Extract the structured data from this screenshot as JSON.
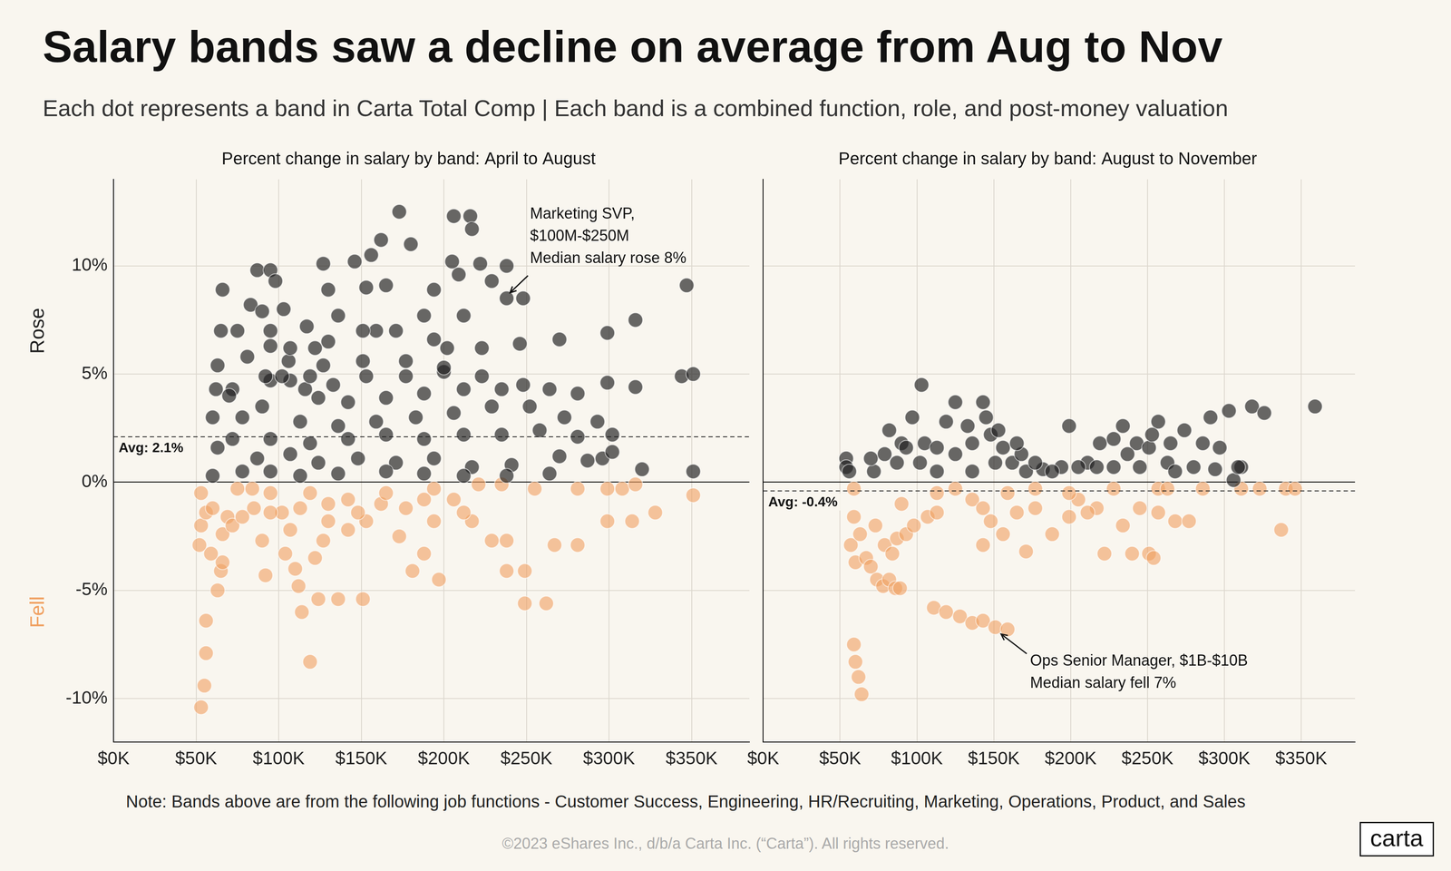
{
  "title": "Salary bands saw a decline on average from Aug to Nov",
  "subtitle": "Each dot represents a band in Carta Total Comp | Each band is a combined function, role, and post-money valuation",
  "note": "Note:  Bands above are from the following job functions - Customer Success, Engineering, HR/Recruiting, Marketing, Operations, Product, and Sales",
  "copyright": "©2023 eShares Inc., d/b/a Carta Inc. (“Carta”). All rights reserved.",
  "logo": "carta",
  "chart_data": [
    {
      "type": "scatter",
      "title": "Percent change in salary by band: April to August",
      "xlim": [
        0,
        385000
      ],
      "xticks": [
        {
          "value": 0,
          "label": "$0K"
        },
        {
          "value": 50000,
          "label": "$50K"
        },
        {
          "value": 100000,
          "label": "$100K"
        },
        {
          "value": 150000,
          "label": "$150K"
        },
        {
          "value": 200000,
          "label": "$200K"
        },
        {
          "value": 250000,
          "label": "$250K"
        },
        {
          "value": 300000,
          "label": "$300K"
        },
        {
          "value": 350000,
          "label": "$350K"
        }
      ],
      "ylim": [
        -12,
        14
      ],
      "yticks": [
        {
          "value": -10,
          "label": "-10%"
        },
        {
          "value": -5,
          "label": "-5%"
        },
        {
          "value": 0,
          "label": "0%"
        },
        {
          "value": 5,
          "label": "5%"
        },
        {
          "value": 10,
          "label": "10%"
        }
      ],
      "grid": true,
      "average": {
        "value": 2.1,
        "label": "Avg: 2.1%"
      },
      "annotations": [
        {
          "text": [
            "Marketing SVP,",
            "$100M-$250M",
            "Median salary rose 8%"
          ],
          "x": 238000,
          "y": 8.6
        }
      ],
      "series": [
        {
          "name": "Rose",
          "color": "#222222",
          "x": [
            173000,
            206000,
            216000,
            217000,
            180000,
            162000,
            156000,
            146000,
            127000,
            205000,
            222000,
            229000,
            238000,
            87000,
            95000,
            98000,
            66000,
            83000,
            90000,
            103000,
            130000,
            153000,
            165000,
            194000,
            209000,
            238000,
            248000,
            347000,
            65000,
            75000,
            95000,
            117000,
            136000,
            159000,
            171000,
            188000,
            299000,
            316000,
            202000,
            223000,
            246000,
            270000,
            177000,
            151000,
            127000,
            106000,
            81000,
            63000,
            344000,
            351000,
            299000,
            316000,
            95000,
            107000,
            72000,
            124000,
            142000,
            165000,
            188000,
            212000,
            235000,
            248000,
            264000,
            281000,
            90000,
            78000,
            60000,
            113000,
            136000,
            159000,
            183000,
            206000,
            229000,
            252000,
            273000,
            293000,
            302000,
            281000,
            258000,
            235000,
            212000,
            188000,
            165000,
            142000,
            119000,
            95000,
            72000,
            63000,
            87000,
            107000,
            124000,
            148000,
            171000,
            194000,
            217000,
            241000,
            270000,
            296000,
            320000,
            351000,
            60000,
            78000,
            95000,
            113000,
            136000,
            165000,
            188000,
            212000,
            238000,
            264000,
            287000,
            302000,
            62000,
            70000,
            92000,
            102000,
            116000,
            133000,
            153000,
            177000,
            200000,
            223000,
            130000,
            151000,
            95000,
            107000,
            122000,
            194000,
            212000,
            200000,
            119000
          ],
          "values": [
            12.5,
            12.3,
            12.3,
            11.7,
            11.0,
            11.2,
            10.5,
            10.2,
            10.1,
            10.2,
            10.1,
            9.3,
            10.0,
            9.8,
            9.8,
            9.3,
            8.9,
            8.2,
            7.9,
            8.0,
            8.9,
            9.0,
            9.1,
            8.9,
            9.6,
            8.5,
            8.5,
            9.1,
            7.0,
            7.0,
            7.0,
            7.2,
            7.7,
            7.0,
            7.0,
            7.7,
            6.9,
            7.5,
            6.2,
            6.2,
            6.4,
            6.6,
            5.6,
            5.6,
            5.4,
            5.6,
            5.8,
            5.4,
            4.9,
            5.0,
            4.6,
            4.4,
            4.7,
            4.7,
            4.3,
            3.9,
            3.7,
            3.9,
            4.1,
            4.3,
            4.3,
            4.5,
            4.3,
            4.1,
            3.5,
            3.0,
            3.0,
            2.8,
            2.6,
            2.8,
            3.0,
            3.2,
            3.5,
            3.5,
            3.0,
            2.8,
            2.2,
            2.1,
            2.4,
            2.2,
            2.2,
            2.0,
            2.2,
            2.0,
            1.8,
            2.0,
            2.0,
            1.6,
            1.1,
            1.3,
            0.9,
            1.1,
            0.9,
            1.1,
            0.7,
            0.8,
            1.2,
            1.1,
            0.6,
            0.5,
            0.3,
            0.5,
            0.5,
            0.3,
            0.4,
            0.5,
            0.4,
            0.3,
            0.3,
            0.4,
            1.0,
            1.4,
            4.3,
            4.0,
            4.9,
            4.9,
            4.3,
            4.5,
            4.9,
            4.9,
            5.1,
            4.9,
            6.5,
            7.0,
            6.3,
            6.2,
            6.2,
            6.6,
            7.7,
            5.3,
            4.9
          ]
        },
        {
          "name": "Fell",
          "color": "#f0a060",
          "x": [
            53000,
            55000,
            56000,
            56000,
            63000,
            65000,
            66000,
            59000,
            52000,
            53000,
            56000,
            53000,
            60000,
            69000,
            75000,
            84000,
            85000,
            90000,
            92000,
            102000,
            107000,
            104000,
            110000,
            112000,
            114000,
            119000,
            122000,
            124000,
            127000,
            130000,
            136000,
            142000,
            151000,
            153000,
            162000,
            173000,
            181000,
            188000,
            194000,
            197000,
            206000,
            217000,
            229000,
            238000,
            249000,
            249000,
            262000,
            238000,
            267000,
            281000,
            255000,
            281000,
            299000,
            308000,
            314000,
            328000,
            351000,
            299000,
            316000,
            235000,
            221000,
            95000,
            119000,
            142000,
            165000,
            188000,
            66000,
            72000,
            78000,
            95000,
            113000,
            130000,
            148000,
            177000,
            212000,
            194000
          ],
          "values": [
            -10.4,
            -9.4,
            -7.9,
            -6.4,
            -5.0,
            -4.1,
            -3.7,
            -3.3,
            -2.9,
            -2.0,
            -1.4,
            -0.5,
            -1.2,
            -1.6,
            -0.3,
            -0.3,
            -1.2,
            -2.7,
            -4.3,
            -1.4,
            -2.2,
            -3.3,
            -4.0,
            -4.8,
            -6.0,
            -8.3,
            -3.5,
            -5.4,
            -2.7,
            -1.8,
            -5.4,
            -2.2,
            -5.4,
            -1.8,
            -1.0,
            -2.5,
            -4.1,
            -3.3,
            -0.3,
            -4.5,
            -0.8,
            -1.8,
            -2.7,
            -4.1,
            -4.1,
            -5.6,
            -5.6,
            -2.7,
            -2.9,
            -2.9,
            -0.3,
            -0.3,
            -1.8,
            -0.3,
            -1.8,
            -1.4,
            -0.6,
            -0.3,
            -0.1,
            -0.1,
            -0.1,
            -0.5,
            -0.5,
            -0.8,
            -0.5,
            -0.8,
            -2.4,
            -2.0,
            -1.6,
            -1.4,
            -1.2,
            -1.0,
            -1.4,
            -1.2,
            -1.4,
            -1.8
          ]
        }
      ]
    },
    {
      "type": "scatter",
      "title": "Percent change in salary by band: August to November",
      "xlim": [
        0,
        385000
      ],
      "xticks": [
        {
          "value": 0,
          "label": "$0K"
        },
        {
          "value": 50000,
          "label": "$50K"
        },
        {
          "value": 100000,
          "label": "$100K"
        },
        {
          "value": 150000,
          "label": "$150K"
        },
        {
          "value": 200000,
          "label": "$200K"
        },
        {
          "value": 250000,
          "label": "$250K"
        },
        {
          "value": 300000,
          "label": "$300K"
        },
        {
          "value": 350000,
          "label": "$350K"
        }
      ],
      "ylim": [
        -12,
        14
      ],
      "yticks": [
        -10,
        -5,
        0,
        5,
        10
      ],
      "grid": true,
      "tick_labels": "x",
      "average": {
        "value": -0.4,
        "label": "Avg: -0.4%"
      },
      "annotations": [
        {
          "text": [
            "Ops Senior Manager, $1B-$10B",
            "Median salary fell 7%"
          ],
          "x": 152000,
          "y": -6.9
        }
      ],
      "series": [
        {
          "color": "#222222",
          "x": [
            54000,
            54000,
            56000,
            72000,
            82000,
            90000,
            97000,
            103000,
            105000,
            113000,
            119000,
            125000,
            136000,
            143000,
            145000,
            148000,
            156000,
            162000,
            171000,
            125000,
            133000,
            102000,
            113000,
            136000,
            182000,
            194000,
            199000,
            211000,
            219000,
            228000,
            234000,
            243000,
            251000,
            257000,
            263000,
            274000,
            286000,
            291000,
            297000,
            303000,
            311000,
            306000,
            318000,
            326000,
            359000,
            280000,
            245000,
            228000,
            217000,
            205000,
            268000,
            294000,
            70000,
            79000,
            87000,
            93000,
            151000,
            168000,
            177000,
            188000,
            237000,
            253000,
            265000,
            309000,
            165000,
            153000
          ],
          "values": [
            1.1,
            0.7,
            0.5,
            0.5,
            2.4,
            1.8,
            3.0,
            4.5,
            1.8,
            1.6,
            2.8,
            1.3,
            1.8,
            3.7,
            3.0,
            2.2,
            1.6,
            0.9,
            0.5,
            3.7,
            2.6,
            0.9,
            0.5,
            0.5,
            0.6,
            0.7,
            2.6,
            0.9,
            1.8,
            2.0,
            2.6,
            1.8,
            1.6,
            2.8,
            0.9,
            2.4,
            1.8,
            3.0,
            1.6,
            3.3,
            0.7,
            0.1,
            3.5,
            3.2,
            3.5,
            0.7,
            0.7,
            0.7,
            0.7,
            0.7,
            0.5,
            0.6,
            1.1,
            1.3,
            0.9,
            1.6,
            0.9,
            1.3,
            0.9,
            0.5,
            1.3,
            2.2,
            1.8,
            0.7,
            1.8,
            2.4
          ]
        },
        {
          "color": "#f0a060",
          "x": [
            59000,
            59000,
            57000,
            60000,
            59000,
            60000,
            62000,
            64000,
            63000,
            67000,
            70000,
            74000,
            78000,
            82000,
            86000,
            89000,
            73000,
            79000,
            84000,
            87000,
            93000,
            98000,
            107000,
            113000,
            111000,
            119000,
            128000,
            136000,
            143000,
            151000,
            159000,
            125000,
            136000,
            143000,
            148000,
            156000,
            165000,
            171000,
            177000,
            188000,
            199000,
            205000,
            217000,
            222000,
            234000,
            240000,
            251000,
            254000,
            257000,
            268000,
            277000,
            177000,
            228000,
            257000,
            286000,
            311000,
            323000,
            340000,
            346000,
            337000,
            263000,
            199000,
            159000,
            113000,
            90000,
            143000,
            211000,
            245000
          ],
          "values": [
            -0.3,
            -1.6,
            -2.9,
            -3.7,
            -7.5,
            -8.3,
            -9.0,
            -9.8,
            -2.4,
            -3.5,
            -3.9,
            -4.5,
            -4.8,
            -4.5,
            -4.9,
            -4.9,
            -2.0,
            -2.9,
            -3.3,
            -2.6,
            -2.4,
            -2.0,
            -1.6,
            -1.4,
            -5.8,
            -6.0,
            -6.2,
            -6.5,
            -6.4,
            -6.7,
            -6.8,
            -0.3,
            -0.8,
            -2.9,
            -1.8,
            -2.4,
            -1.4,
            -3.2,
            -1.2,
            -2.4,
            -1.6,
            -0.8,
            -1.2,
            -3.3,
            -2.0,
            -3.3,
            -3.3,
            -3.5,
            -1.4,
            -1.8,
            -1.8,
            -0.3,
            -0.3,
            -0.3,
            -0.3,
            -0.3,
            -0.3,
            -0.3,
            -0.3,
            -2.2,
            -0.3,
            -0.5,
            -0.5,
            -0.5,
            -1.0,
            -1.2,
            -1.4,
            -1.2
          ]
        }
      ]
    }
  ]
}
